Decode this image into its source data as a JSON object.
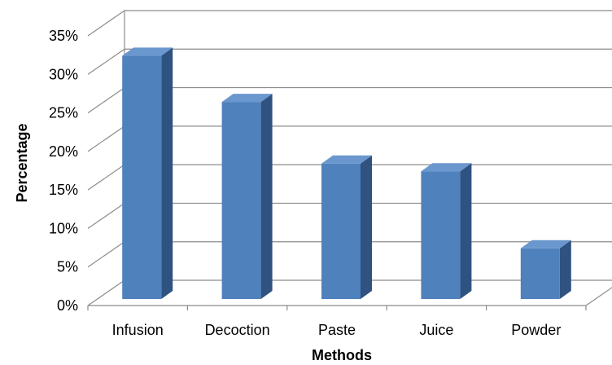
{
  "chart_data": {
    "type": "bar",
    "categories": [
      "Infusion",
      "Decoction",
      "Paste",
      "Juice",
      "Powder"
    ],
    "values": [
      32,
      26,
      18,
      17,
      7
    ],
    "xlabel": "Methods",
    "ylabel": "Percentage",
    "ylim": [
      0,
      35
    ],
    "yticks": [
      "0%",
      "5%",
      "10%",
      "15%",
      "20%",
      "25%",
      "30%",
      "35%"
    ],
    "grid": true,
    "style": "3d-column",
    "colors": {
      "bar_front": "#4f81bd",
      "bar_side": "#2f5280",
      "bar_top": "#6b97cf",
      "grid": "#8c8c8c"
    }
  }
}
